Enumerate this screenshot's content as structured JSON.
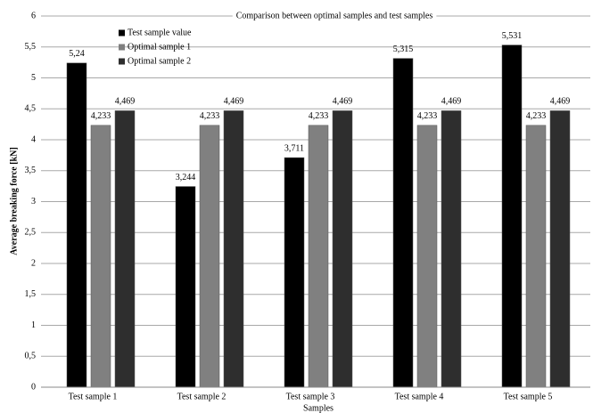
{
  "chart_data": {
    "type": "bar",
    "title": "Comparison between optimal samples and test samples",
    "x_label": "Samples",
    "y_label": "Average breaking force [kN]",
    "categories": [
      "Test sample 1",
      "Test sample 2",
      "Test sample 3",
      "Test sample 4",
      "Test sample 5"
    ],
    "series": [
      {
        "name": "Test sample value",
        "color": "#000000",
        "values": [
          5.24,
          3.244,
          3.711,
          5.315,
          5.531
        ],
        "value_labels": [
          "5,24",
          "3,244",
          "3,711",
          "5,315",
          "5,531"
        ]
      },
      {
        "name": "Optimal sample 1",
        "color": "#808080",
        "values": [
          4.233,
          4.233,
          4.233,
          4.233,
          4.233
        ],
        "value_labels": [
          "4,233",
          "4,233",
          "4,233",
          "4,233",
          "4,233"
        ]
      },
      {
        "name": "Optimal sample 2",
        "color": "#2e2e2e",
        "values": [
          4.469,
          4.469,
          4.469,
          4.469,
          4.469
        ],
        "value_labels": [
          "4,469",
          "4,469",
          "4,469",
          "4,469",
          "4,469"
        ]
      }
    ],
    "ylim": [
      0,
      6
    ],
    "yticks": [
      0,
      {
        "value": 0.5,
        "label": "0,5"
      },
      1,
      {
        "value": 1.5,
        "label": "1,5"
      },
      2,
      {
        "value": 2.5,
        "label": "2,5"
      },
      3,
      {
        "value": 3.5,
        "label": "3,5"
      },
      4,
      {
        "value": 4.5,
        "label": "4,5"
      },
      5,
      {
        "value": 5.5,
        "label": "5,5"
      },
      6
    ],
    "grid": true,
    "legend": "top-left"
  }
}
